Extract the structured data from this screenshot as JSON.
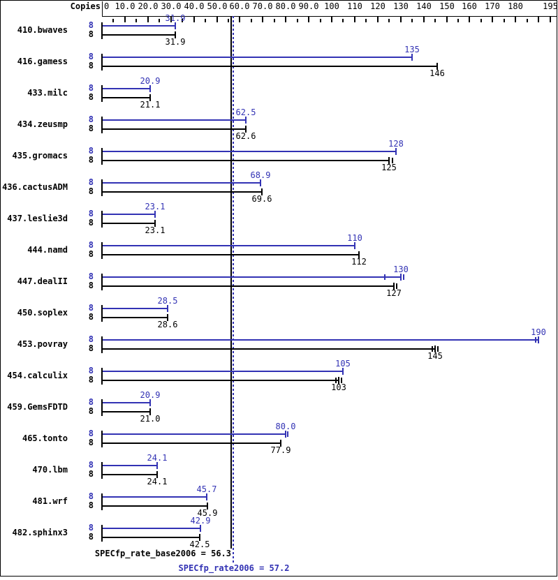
{
  "header": {
    "copies_label": "Copies"
  },
  "colors": {
    "peak": "#3232b4",
    "base": "#000000",
    "background": "#ffffff",
    "frame": "#000000"
  },
  "summary": {
    "base_label": "SPECfp_rate_base2006 = 56.3",
    "peak_label": "SPECfp_rate2006 = 57.2"
  },
  "chart_data": {
    "type": "bar",
    "orientation": "horizontal",
    "title": "",
    "xlabel": "Copies",
    "xlim": [
      0,
      195
    ],
    "grid": false,
    "legend_position": "none",
    "axis_ticks": [
      {
        "v": 0,
        "label": "0"
      },
      {
        "v": 10,
        "label": "10.0"
      },
      {
        "v": 20,
        "label": "20.0"
      },
      {
        "v": 30,
        "label": "30.0"
      },
      {
        "v": 40,
        "label": "40.0"
      },
      {
        "v": 50,
        "label": "50.0"
      },
      {
        "v": 60,
        "label": "60.0"
      },
      {
        "v": 70,
        "label": "70.0"
      },
      {
        "v": 80,
        "label": "80.0"
      },
      {
        "v": 90,
        "label": "90.0"
      },
      {
        "v": 100,
        "label": "100"
      },
      {
        "v": 110,
        "label": "110"
      },
      {
        "v": 120,
        "label": "120"
      },
      {
        "v": 130,
        "label": "130"
      },
      {
        "v": 140,
        "label": "140"
      },
      {
        "v": 150,
        "label": "150"
      },
      {
        "v": 160,
        "label": "160"
      },
      {
        "v": 170,
        "label": "170"
      },
      {
        "v": 180,
        "label": "180"
      },
      {
        "v": 195,
        "label": "195"
      }
    ],
    "minor_tick_step": 5,
    "copies": "8",
    "categories": [
      "410.bwaves",
      "416.gamess",
      "433.milc",
      "434.zeusmp",
      "435.gromacs",
      "436.cactusADM",
      "437.leslie3d",
      "444.namd",
      "447.dealII",
      "450.soplex",
      "453.povray",
      "454.calculix",
      "459.GemsFDTD",
      "465.tonto",
      "470.lbm",
      "481.wrf",
      "482.sphinx3"
    ],
    "series": [
      {
        "name": "SPECfp_rate2006",
        "color": "#3232b4",
        "values": [
          31.9,
          135,
          20.9,
          62.5,
          128,
          68.9,
          23.1,
          110,
          130,
          28.5,
          190,
          105,
          20.9,
          80.0,
          24.1,
          45.7,
          42.9
        ],
        "labels": [
          "31.9",
          "135",
          "20.9",
          "62.5",
          "128",
          "68.9",
          "23.1",
          "110",
          "130",
          "28.5",
          "190",
          "105",
          "20.9",
          "80.0",
          "24.1",
          "45.7",
          "42.9"
        ],
        "marks": [
          [],
          [],
          [],
          [],
          [],
          [],
          [],
          [],
          [
            123,
            131.3
          ],
          [],
          [
            188.7
          ],
          [],
          [],
          [
            81
          ],
          [],
          [],
          []
        ]
      },
      {
        "name": "SPECfp_rate_base2006",
        "color": "#000000",
        "values": [
          31.9,
          146,
          21.1,
          62.6,
          125,
          69.6,
          23.1,
          112,
          127,
          28.6,
          145,
          103,
          21.0,
          77.9,
          24.1,
          45.9,
          42.5
        ],
        "labels": [
          "31.9",
          "146",
          "21.1",
          "62.6",
          "125",
          "69.6",
          "23.1",
          "112",
          "127",
          "28.6",
          "145",
          "103",
          "21.0",
          "77.9",
          "24.1",
          "45.9",
          "42.5"
        ],
        "marks": [
          [],
          [],
          [],
          [],
          [
            126.3
          ],
          [],
          [],
          [],
          [
            128.3
          ],
          [],
          [
            143.7,
            146.3
          ],
          [
            101.7,
            104.3
          ],
          [],
          [],
          [],
          [],
          []
        ]
      }
    ],
    "reference_lines": [
      {
        "name": "base_mean",
        "value": 56.3,
        "label": "SPECfp_rate_base2006 = 56.3",
        "color": "#000000",
        "style": "solid"
      },
      {
        "name": "peak_mean",
        "value": 57.2,
        "label": "SPECfp_rate2006 = 57.2",
        "color": "#3232b4",
        "style": "dotted"
      }
    ]
  }
}
